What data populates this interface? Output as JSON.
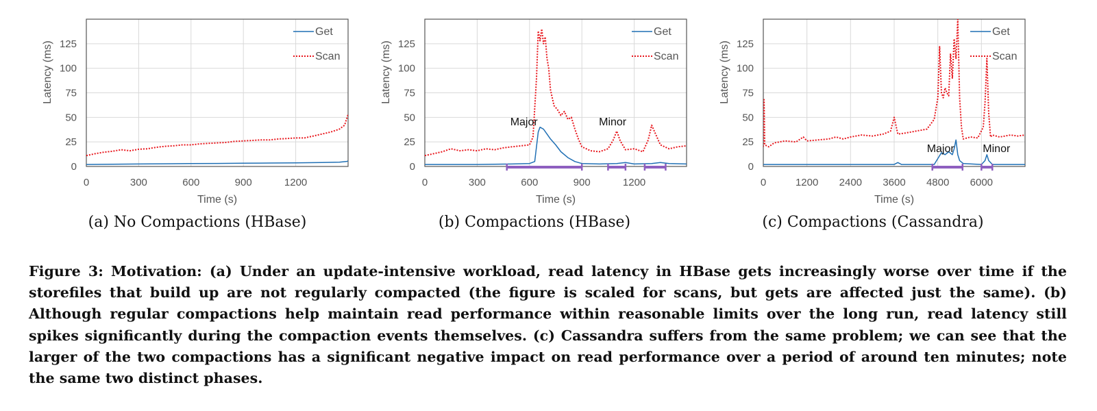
{
  "chart_data": [
    {
      "type": "line",
      "title": "",
      "subcaption": "(a) No Compactions (HBase)",
      "xlabel": "Time (s)",
      "ylabel": "Latency (ms)",
      "xlim": [
        0,
        1500
      ],
      "ylim": [
        0,
        150
      ],
      "xticks": [
        0,
        300,
        600,
        900,
        1200
      ],
      "yticks": [
        0,
        25,
        50,
        75,
        100,
        125
      ],
      "grid": true,
      "legend": "top-right",
      "series": [
        {
          "name": "Get",
          "color": "#1f6fb4",
          "style": "solid",
          "x": [
            0,
            150,
            300,
            450,
            600,
            750,
            900,
            1050,
            1200,
            1350,
            1450,
            1490,
            1500
          ],
          "y": [
            2,
            2.3,
            2.5,
            2.7,
            3,
            3.1,
            3.3,
            3.5,
            3.7,
            4,
            4.3,
            5,
            5.5
          ]
        },
        {
          "name": "Scan",
          "color": "#e8151b",
          "style": "dotted",
          "x": [
            0,
            50,
            100,
            150,
            200,
            250,
            300,
            350,
            400,
            450,
            500,
            550,
            600,
            650,
            700,
            750,
            800,
            850,
            900,
            950,
            1000,
            1050,
            1100,
            1150,
            1200,
            1250,
            1300,
            1350,
            1400,
            1450,
            1480,
            1500
          ],
          "y": [
            11,
            13,
            14.5,
            15.5,
            17,
            16,
            17.5,
            18,
            19.5,
            20.5,
            21,
            22,
            22,
            23,
            23.5,
            24,
            24.5,
            25.5,
            26,
            26.5,
            27,
            27,
            28,
            28.5,
            29,
            29,
            31,
            33,
            35,
            38,
            42,
            53
          ]
        }
      ],
      "annotations": []
    },
    {
      "type": "line",
      "title": "",
      "subcaption": "(b) Compactions (HBase)",
      "xlabel": "Time (s)",
      "ylabel": "Latency (ms)",
      "xlim": [
        0,
        1500
      ],
      "ylim": [
        0,
        150
      ],
      "xticks": [
        0,
        300,
        600,
        900,
        1200
      ],
      "yticks": [
        0,
        25,
        50,
        75,
        100,
        125
      ],
      "grid": true,
      "legend": "top-right",
      "series": [
        {
          "name": "Get",
          "color": "#1f6fb4",
          "style": "solid",
          "x": [
            0,
            300,
            500,
            600,
            630,
            650,
            660,
            680,
            700,
            720,
            750,
            780,
            820,
            860,
            900,
            1000,
            1100,
            1150,
            1200,
            1300,
            1350,
            1400,
            1500
          ],
          "y": [
            2,
            2,
            2.5,
            3,
            5,
            35,
            40,
            38,
            33,
            28,
            22,
            15,
            9,
            5,
            3,
            2.5,
            3,
            4,
            2.5,
            3,
            4,
            3,
            2.5
          ]
        },
        {
          "name": "Scan",
          "color": "#e8151b",
          "style": "dotted",
          "x": [
            0,
            50,
            100,
            150,
            200,
            250,
            300,
            350,
            400,
            450,
            500,
            550,
            600,
            620,
            640,
            650,
            660,
            670,
            680,
            690,
            700,
            710,
            720,
            740,
            760,
            780,
            800,
            820,
            840,
            860,
            880,
            900,
            950,
            1000,
            1050,
            1080,
            1100,
            1120,
            1150,
            1200,
            1250,
            1280,
            1300,
            1330,
            1350,
            1400,
            1450,
            1500
          ],
          "y": [
            11,
            13,
            15,
            18,
            16,
            17,
            16,
            18,
            17,
            19,
            20,
            21,
            22,
            30,
            90,
            138,
            128,
            140,
            125,
            132,
            110,
            100,
            78,
            62,
            58,
            52,
            56,
            48,
            50,
            38,
            28,
            20,
            16,
            15,
            18,
            27,
            36,
            26,
            17,
            18,
            15,
            27,
            42,
            30,
            22,
            18,
            20,
            21
          ]
        }
      ],
      "annotations": [
        {
          "text": "Major",
          "span": [
            470,
            900
          ]
        },
        {
          "text": "Minor",
          "span": [
            1050,
            1150
          ]
        },
        {
          "text": "",
          "span": [
            1260,
            1380
          ]
        }
      ]
    },
    {
      "type": "line",
      "title": "",
      "subcaption": "(c) Compactions (Cassandra)",
      "xlabel": "Time (s)",
      "ylabel": "Latency (ms)",
      "xlim": [
        0,
        7200
      ],
      "ylim": [
        0,
        150
      ],
      "xticks": [
        0,
        1200,
        2400,
        3600,
        4800,
        6000
      ],
      "yticks": [
        0,
        25,
        50,
        75,
        100,
        125
      ],
      "grid": true,
      "legend": "top-right",
      "series": [
        {
          "name": "Get",
          "color": "#1f6fb4",
          "style": "solid",
          "x": [
            0,
            1200,
            2400,
            3600,
            3700,
            3800,
            4700,
            4800,
            4900,
            5000,
            5100,
            5200,
            5250,
            5300,
            5350,
            5400,
            5500,
            6000,
            6100,
            6150,
            6200,
            6300,
            7200
          ],
          "y": [
            2,
            2,
            2,
            2,
            4,
            2,
            2,
            8,
            14,
            12,
            15,
            12,
            18,
            27,
            12,
            6,
            3,
            2,
            6,
            12,
            6,
            2,
            2
          ]
        },
        {
          "name": "Scan",
          "color": "#e8151b",
          "style": "dotted",
          "x": [
            0,
            20,
            40,
            150,
            300,
            600,
            900,
            1100,
            1200,
            1500,
            1800,
            2000,
            2200,
            2400,
            2700,
            3000,
            3300,
            3500,
            3600,
            3700,
            3900,
            4200,
            4500,
            4700,
            4800,
            4850,
            4900,
            4950,
            5000,
            5050,
            5100,
            5150,
            5200,
            5250,
            5300,
            5350,
            5400,
            5450,
            5500,
            5700,
            5900,
            6050,
            6100,
            6150,
            6200,
            6250,
            6300,
            6500,
            6800,
            7000,
            7200
          ],
          "y": [
            20,
            68,
            22,
            20,
            24,
            26,
            25,
            30,
            26,
            27,
            28,
            30,
            28,
            30,
            32,
            31,
            33,
            36,
            50,
            33,
            34,
            36,
            38,
            48,
            70,
            122,
            75,
            70,
            80,
            75,
            72,
            115,
            90,
            130,
            110,
            150,
            70,
            40,
            28,
            30,
            29,
            40,
            65,
            110,
            55,
            30,
            32,
            30,
            32,
            31,
            32
          ]
        }
      ],
      "annotations": [
        {
          "text": "Major",
          "span": [
            4650,
            5480
          ]
        },
        {
          "text": "Minor",
          "span": [
            6000,
            6300
          ]
        }
      ]
    }
  ],
  "caption": "Figure 3: Motivation: (a) Under an update-intensive workload, read latency in HBase gets increasingly worse over time if the storefiles that build up are not regularly compacted (the figure is scaled for scans, but gets are affected just the same). (b) Although regular compactions help maintain read performance within reasonable limits over the long run, read latency still spikes significantly during the compaction events themselves. (c) Cassandra suffers from the same problem; we can see that the larger of the two compactions has a significant negative impact on read performance over a period of around ten minutes; note the same two distinct phases."
}
